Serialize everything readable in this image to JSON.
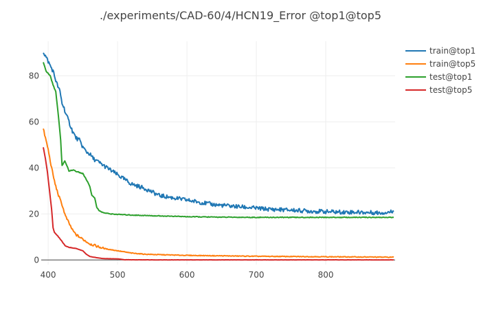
{
  "chart_data": {
    "type": "line",
    "title": "./experiments/CAD-60/4/HCN19_Error @top1@top5",
    "xlabel": "",
    "ylabel": "",
    "xlim": [
      390,
      900
    ],
    "ylim": [
      -2,
      95
    ],
    "x_ticks": [
      400,
      500,
      600,
      700,
      800
    ],
    "y_ticks": [
      0,
      20,
      40,
      60,
      80
    ],
    "grid": true,
    "legend_position": "top-right",
    "series": [
      {
        "name": "train@top1",
        "color": "#1f77b4",
        "x": [
          393,
          397,
          402,
          407,
          412,
          417,
          420,
          423,
          426,
          430,
          435,
          440,
          445,
          450,
          455,
          460,
          465,
          470,
          475,
          480,
          490,
          500,
          510,
          520,
          530,
          540,
          550,
          560,
          580,
          600,
          620,
          640,
          660,
          680,
          700,
          720,
          740,
          760,
          780,
          800,
          820,
          840,
          860,
          880,
          898
        ],
        "y": [
          90.5,
          88,
          85,
          82,
          77,
          73,
          68,
          66,
          63,
          60,
          56,
          53,
          52,
          49,
          47,
          46,
          44,
          43,
          42,
          41,
          39,
          37,
          35,
          33,
          32,
          31,
          29.5,
          28,
          27,
          26,
          25,
          24,
          23.5,
          23,
          22.5,
          22,
          21.8,
          21.5,
          21.2,
          21,
          20.8,
          20.8,
          20.6,
          20.5,
          21
        ]
      },
      {
        "name": "train@top5",
        "color": "#ff7f0e",
        "x": [
          393,
          396,
          400,
          403,
          407,
          410,
          415,
          420,
          425,
          430,
          435,
          440,
          445,
          450,
          460,
          470,
          480,
          490,
          500,
          520,
          540,
          560,
          600,
          650,
          700,
          750,
          800,
          850,
          898
        ],
        "y": [
          57,
          53,
          48,
          43,
          37,
          33,
          28,
          24,
          19,
          16,
          13,
          11,
          10,
          9,
          7,
          6,
          5,
          4.5,
          4,
          3,
          2.5,
          2.3,
          2,
          1.8,
          1.6,
          1.5,
          1.4,
          1.3,
          1.2
        ]
      },
      {
        "name": "test@top1",
        "color": "#2ca02c",
        "x": [
          393,
          397,
          403,
          407,
          411,
          415,
          418,
          420,
          422,
          424,
          427,
          430,
          433,
          437,
          440,
          445,
          450,
          455,
          460,
          463,
          467,
          470,
          473,
          476,
          480,
          490,
          500,
          520,
          550,
          580,
          600,
          650,
          700,
          750,
          800,
          850,
          898
        ],
        "y": [
          86,
          82,
          80,
          76,
          73,
          62,
          52,
          41,
          42,
          43,
          41,
          38.5,
          39,
          39,
          38.5,
          38,
          37.5,
          35,
          32,
          28,
          27,
          23,
          21.5,
          21,
          20.5,
          20,
          19.8,
          19.5,
          19.2,
          19,
          18.8,
          18.6,
          18.5,
          18.5,
          18.5,
          18.5,
          18.5
        ]
      },
      {
        "name": "test@top5",
        "color": "#d62728",
        "x": [
          393,
          396,
          399,
          402,
          405,
          407,
          409,
          412,
          415,
          420,
          425,
          430,
          440,
          450,
          455,
          460,
          470,
          480,
          500,
          510,
          550,
          600,
          700,
          800,
          898
        ],
        "y": [
          49,
          44,
          38,
          30,
          22,
          14,
          12,
          11,
          10,
          8,
          6,
          5.5,
          5,
          4,
          2.5,
          1.5,
          1,
          0.6,
          0.5,
          0.1,
          0.05,
          0.05,
          0.05,
          0.05,
          0.05
        ]
      }
    ]
  }
}
